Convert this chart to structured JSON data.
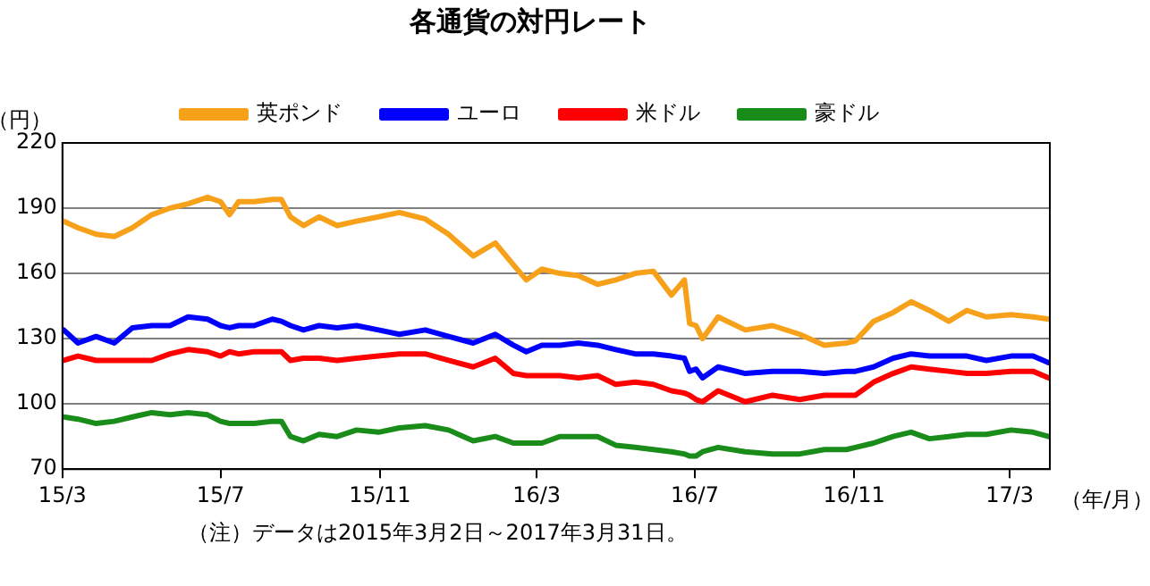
{
  "chart_data": {
    "type": "line",
    "title": "各通貨の対円レート",
    "ylabel": "（円）",
    "xlabel": "（年/月）",
    "annotations": [
      "（注）データは2015年3月2日～2017年3月31日。"
    ],
    "x": [
      "2015-03-02",
      "2015-03-13",
      "2015-03-27",
      "2015-04-10",
      "2015-04-24",
      "2015-05-09",
      "2015-05-23",
      "2015-06-06",
      "2015-06-21",
      "2015-07-01",
      "2015-07-08",
      "2015-07-15",
      "2015-07-27",
      "2015-08-10",
      "2015-08-17",
      "2015-08-24",
      "2015-09-03",
      "2015-09-15",
      "2015-09-29",
      "2015-10-14",
      "2015-10-31",
      "2015-11-16",
      "2015-12-06",
      "2015-12-24",
      "2016-01-12",
      "2016-01-29",
      "2016-02-12",
      "2016-02-22",
      "2016-03-05",
      "2016-03-19",
      "2016-04-02",
      "2016-04-17",
      "2016-05-01",
      "2016-05-16",
      "2016-05-30",
      "2016-06-13",
      "2016-06-23",
      "2016-06-27",
      "2016-07-02",
      "2016-07-07",
      "2016-07-19",
      "2016-08-09",
      "2016-08-30",
      "2016-09-20",
      "2016-10-09",
      "2016-10-26",
      "2016-11-02",
      "2016-11-16",
      "2016-12-01",
      "2016-12-15",
      "2016-12-29",
      "2017-01-13",
      "2017-01-27",
      "2017-02-11",
      "2017-03-02",
      "2017-03-19",
      "2017-03-31"
    ],
    "xlim": [
      "2015-03-01",
      "2017-04-01"
    ],
    "xticks": [
      {
        "value": "2015-03-01",
        "label": "15/3"
      },
      {
        "value": "2015-07-01",
        "label": "15/7"
      },
      {
        "value": "2015-11-01",
        "label": "15/11"
      },
      {
        "value": "2016-03-01",
        "label": "16/3"
      },
      {
        "value": "2016-07-01",
        "label": "16/7"
      },
      {
        "value": "2016-11-01",
        "label": "16/11"
      },
      {
        "value": "2017-03-01",
        "label": "17/3"
      }
    ],
    "ylim": [
      70,
      220
    ],
    "yticks": [
      70,
      100,
      130,
      160,
      190,
      220
    ],
    "grid": "y",
    "legend": "top",
    "marker": "none",
    "line_style": "solid",
    "series": [
      {
        "name": "英ポンド",
        "color": "#f7a11a",
        "values": [
          184,
          181,
          178,
          177,
          181,
          187,
          190,
          192,
          195,
          193,
          187,
          193,
          193,
          194,
          194,
          186,
          182,
          186,
          182,
          184,
          186,
          188,
          185,
          178,
          168,
          174,
          164,
          157,
          162,
          160,
          159,
          155,
          157,
          160,
          161,
          150,
          157,
          137,
          136,
          130,
          140,
          134,
          136,
          132,
          127,
          128,
          129,
          138,
          142,
          147,
          143,
          138,
          143,
          140,
          141,
          140,
          139
        ]
      },
      {
        "name": "ユーロ",
        "color": "#0000ff",
        "values": [
          134,
          128,
          131,
          128,
          135,
          136,
          136,
          140,
          139,
          136,
          135,
          136,
          136,
          139,
          138,
          136,
          134,
          136,
          135,
          136,
          134,
          132,
          134,
          131,
          128,
          132,
          127,
          124,
          127,
          127,
          128,
          127,
          125,
          123,
          123,
          122,
          121,
          115,
          116,
          112,
          117,
          114,
          115,
          115,
          114,
          115,
          115,
          117,
          121,
          123,
          122,
          122,
          122,
          120,
          122,
          122,
          119
        ]
      },
      {
        "name": "米ドル",
        "color": "#ff0000",
        "values": [
          120,
          122,
          120,
          120,
          120,
          120,
          123,
          125,
          124,
          122,
          124,
          123,
          124,
          124,
          124,
          120,
          121,
          121,
          120,
          121,
          122,
          123,
          123,
          120,
          117,
          121,
          114,
          113,
          113,
          113,
          112,
          113,
          109,
          110,
          109,
          106,
          105,
          104,
          102,
          101,
          106,
          101,
          104,
          102,
          104,
          104,
          104,
          110,
          114,
          117,
          116,
          115,
          114,
          114,
          115,
          115,
          112
        ]
      },
      {
        "name": "豪ドル",
        "color": "#1a8c1a",
        "values": [
          94,
          93,
          91,
          92,
          94,
          96,
          95,
          96,
          95,
          92,
          91,
          91,
          91,
          92,
          92,
          85,
          83,
          86,
          85,
          88,
          87,
          89,
          90,
          88,
          83,
          85,
          82,
          82,
          82,
          85,
          85,
          85,
          81,
          80,
          79,
          78,
          77,
          76,
          76,
          78,
          80,
          78,
          77,
          77,
          79,
          79,
          80,
          82,
          85,
          87,
          84,
          85,
          86,
          86,
          88,
          87,
          85
        ]
      }
    ]
  }
}
